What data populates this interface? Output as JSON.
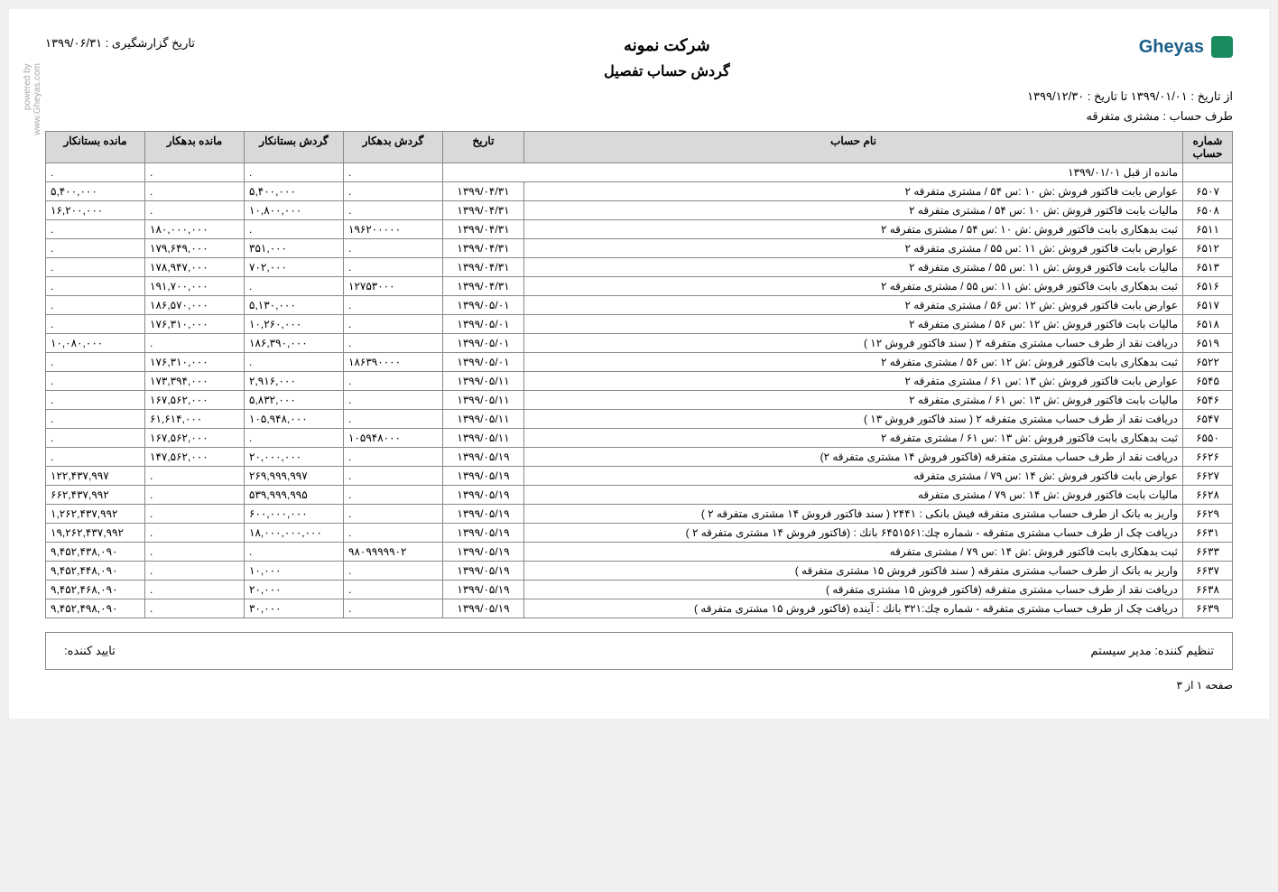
{
  "header": {
    "logo_text": "Gheyas",
    "company": "شرکت نمونه",
    "report_title": "گردش حساب تفصیل",
    "report_date_label": "تاریخ گزارشگیری : ۱۳۹۹/۰۶/۳۱",
    "date_range": "از تاریخ : ۱۳۹۹/۰۱/۰۱  تا تاریخ : ۱۳۹۹/۱۲/۳۰",
    "account_party": "طرف حساب : مشتری متفرقه",
    "powered_by": "powered by",
    "powered_url": "www.Gheyas.com"
  },
  "columns": {
    "acc_no": "شماره حساب",
    "acc_name": "نام حساب",
    "date": "تاریخ",
    "debit_turn": "گردش بدهکار",
    "credit_turn": "گردش بستانکار",
    "debit_bal": "مانده بدهکار",
    "credit_bal": "مانده بستانکار"
  },
  "opening": {
    "label": "مانده از قبل ۱۳۹۹/۰۱/۰۱",
    "debit_turn": ".",
    "credit_turn": ".",
    "debit_bal": ".",
    "credit_bal": "."
  },
  "rows": [
    {
      "no": "۶۵۰۷",
      "name": "عوارض  بابت فاکتور فروش :ش ۱۰ :س ۵۴ / مشتری متفرقه ۲",
      "date": "۱۳۹۹/۰۴/۳۱",
      "dt": ".",
      "ct": "۵,۴۰۰,۰۰۰",
      "db": ".",
      "cb": "۵,۴۰۰,۰۰۰"
    },
    {
      "no": "۶۵۰۸",
      "name": "مالیات  بابت فاکتور فروش :ش ۱۰ :س ۵۴ / مشتری متفرقه ۲",
      "date": "۱۳۹۹/۰۴/۳۱",
      "dt": ".",
      "ct": "۱۰,۸۰۰,۰۰۰",
      "db": ".",
      "cb": "۱۶,۲۰۰,۰۰۰"
    },
    {
      "no": "۶۵۱۱",
      "name": "ثبت بدهکاری  بابت فاکتور فروش :ش ۱۰ :س ۵۴ / مشتری متفرقه ۲",
      "date": "۱۳۹۹/۰۴/۳۱",
      "dt": "۱۹۶۲۰۰۰۰۰",
      "ct": ".",
      "db": "۱۸۰,۰۰۰,۰۰۰",
      "cb": "."
    },
    {
      "no": "۶۵۱۲",
      "name": "عوارض  بابت فاکتور فروش :ش ۱۱ :س ۵۵ / مشتری متفرقه ۲",
      "date": "۱۳۹۹/۰۴/۳۱",
      "dt": ".",
      "ct": "۳۵۱,۰۰۰",
      "db": "۱۷۹,۶۴۹,۰۰۰",
      "cb": "."
    },
    {
      "no": "۶۵۱۳",
      "name": "مالیات  بابت فاکتور فروش :ش ۱۱ :س ۵۵ / مشتری متفرقه ۲",
      "date": "۱۳۹۹/۰۴/۳۱",
      "dt": ".",
      "ct": "۷۰۲,۰۰۰",
      "db": "۱۷۸,۹۴۷,۰۰۰",
      "cb": "."
    },
    {
      "no": "۶۵۱۶",
      "name": "ثبت بدهکاری  بابت فاکتور فروش :ش ۱۱ :س ۵۵ / مشتری متفرقه ۲",
      "date": "۱۳۹۹/۰۴/۳۱",
      "dt": "۱۲۷۵۳۰۰۰",
      "ct": ".",
      "db": "۱۹۱,۷۰۰,۰۰۰",
      "cb": "."
    },
    {
      "no": "۶۵۱۷",
      "name": "عوارض  بابت فاکتور فروش :ش ۱۲ :س ۵۶ / مشتری متفرقه ۲",
      "date": "۱۳۹۹/۰۵/۰۱",
      "dt": ".",
      "ct": "۵,۱۳۰,۰۰۰",
      "db": "۱۸۶,۵۷۰,۰۰۰",
      "cb": "."
    },
    {
      "no": "۶۵۱۸",
      "name": "مالیات  بابت فاکتور فروش :ش ۱۲ :س ۵۶ / مشتری متفرقه ۲",
      "date": "۱۳۹۹/۰۵/۰۱",
      "dt": ".",
      "ct": "۱۰,۲۶۰,۰۰۰",
      "db": "۱۷۶,۳۱۰,۰۰۰",
      "cb": "."
    },
    {
      "no": "۶۵۱۹",
      "name": "دریافت نقد از طرف حساب مشتری متفرقه ۲ ( سند فاکتور فروش ۱۲ )",
      "date": "۱۳۹۹/۰۵/۰۱",
      "dt": ".",
      "ct": "۱۸۶,۳۹۰,۰۰۰",
      "db": ".",
      "cb": "۱۰,۰۸۰,۰۰۰"
    },
    {
      "no": "۶۵۲۲",
      "name": "ثبت بدهکاری  بابت فاکتور فروش :ش ۱۲ :س ۵۶ / مشتری متفرقه ۲",
      "date": "۱۳۹۹/۰۵/۰۱",
      "dt": "۱۸۶۳۹۰۰۰۰",
      "ct": ".",
      "db": "۱۷۶,۳۱۰,۰۰۰",
      "cb": "."
    },
    {
      "no": "۶۵۴۵",
      "name": "عوارض  بابت فاکتور فروش :ش ۱۳ :س ۶۱ / مشتری متفرقه ۲",
      "date": "۱۳۹۹/۰۵/۱۱",
      "dt": ".",
      "ct": "۲,۹۱۶,۰۰۰",
      "db": "۱۷۳,۳۹۴,۰۰۰",
      "cb": "."
    },
    {
      "no": "۶۵۴۶",
      "name": "مالیات  بابت فاکتور فروش :ش ۱۳ :س ۶۱ / مشتری متفرقه ۲",
      "date": "۱۳۹۹/۰۵/۱۱",
      "dt": ".",
      "ct": "۵,۸۳۲,۰۰۰",
      "db": "۱۶۷,۵۶۲,۰۰۰",
      "cb": "."
    },
    {
      "no": "۶۵۴۷",
      "name": "دریافت نقد از طرف حساب مشتری متفرقه ۲ ( سند فاکتور فروش ۱۳ )",
      "date": "۱۳۹۹/۰۵/۱۱",
      "dt": ".",
      "ct": "۱۰۵,۹۴۸,۰۰۰",
      "db": "۶۱,۶۱۴,۰۰۰",
      "cb": "."
    },
    {
      "no": "۶۵۵۰",
      "name": "ثبت بدهکاری  بابت فاکتور فروش :ش ۱۳ :س ۶۱ / مشتری متفرقه ۲",
      "date": "۱۳۹۹/۰۵/۱۱",
      "dt": "۱۰۵۹۴۸۰۰۰",
      "ct": ".",
      "db": "۱۶۷,۵۶۲,۰۰۰",
      "cb": "."
    },
    {
      "no": "۶۶۲۶",
      "name": "دریافت نقد از طرف حساب مشتری متفرقه (فاکتور فروش ۱۴ مشتری متفرقه ۲)",
      "date": "۱۳۹۹/۰۵/۱۹",
      "dt": ".",
      "ct": "۲۰,۰۰۰,۰۰۰",
      "db": "۱۴۷,۵۶۲,۰۰۰",
      "cb": "."
    },
    {
      "no": "۶۶۲۷",
      "name": "عوارض  بابت فاکتور فروش :ش ۱۴ :س ۷۹ / مشتری متفرقه",
      "date": "۱۳۹۹/۰۵/۱۹",
      "dt": ".",
      "ct": "۲۶۹,۹۹۹,۹۹۷",
      "db": ".",
      "cb": "۱۲۲,۴۳۷,۹۹۷"
    },
    {
      "no": "۶۶۲۸",
      "name": "مالیات  بابت فاکتور فروش :ش ۱۴ :س ۷۹ / مشتری متفرقه",
      "date": "۱۳۹۹/۰۵/۱۹",
      "dt": ".",
      "ct": "۵۳۹,۹۹۹,۹۹۵",
      "db": ".",
      "cb": "۶۶۲,۴۳۷,۹۹۲"
    },
    {
      "no": "۶۶۲۹",
      "name": "واریز به بانک از طرف حساب مشتری متفرقه فیش بانکی : ۲۴۴۱ ( سند فاکتور فروش ۱۴ مشتری متفرقه ۲ )",
      "date": "۱۳۹۹/۰۵/۱۹",
      "dt": ".",
      "ct": "۶۰۰,۰۰۰,۰۰۰",
      "db": ".",
      "cb": "۱,۲۶۲,۴۳۷,۹۹۲"
    },
    {
      "no": "۶۶۳۱",
      "name": "دریافت چک از طرف حساب مشتری متفرقه - شماره چك:۶۴۵۱۵۶۱  بانك :  (فاکتور فروش ۱۴ مشتری متفرقه ۲ )",
      "date": "۱۳۹۹/۰۵/۱۹",
      "dt": ".",
      "ct": "۱۸,۰۰۰,۰۰۰,۰۰۰",
      "db": ".",
      "cb": "۱۹,۲۶۲,۴۳۷,۹۹۲"
    },
    {
      "no": "۶۶۳۳",
      "name": "ثبت بدهکاری  بابت فاکتور فروش :ش ۱۴ :س ۷۹ / مشتری متفرقه",
      "date": "۱۳۹۹/۰۵/۱۹",
      "dt": "۹۸۰۹۹۹۹۹۰۲",
      "ct": ".",
      "db": ".",
      "cb": "۹,۴۵۲,۴۳۸,۰۹۰"
    },
    {
      "no": "۶۶۳۷",
      "name": "واریز به بانک از طرف حساب مشتری متفرقه ( سند فاکتور فروش ۱۵ مشتری متفرقه )",
      "date": "۱۳۹۹/۰۵/۱۹",
      "dt": ".",
      "ct": "۱۰,۰۰۰",
      "db": ".",
      "cb": "۹,۴۵۲,۴۴۸,۰۹۰"
    },
    {
      "no": "۶۶۳۸",
      "name": "دریافت نقد از طرف حساب مشتری متفرقه (فاکتور فروش ۱۵ مشتری متفرقه )",
      "date": "۱۳۹۹/۰۵/۱۹",
      "dt": ".",
      "ct": "۲۰,۰۰۰",
      "db": ".",
      "cb": "۹,۴۵۲,۴۶۸,۰۹۰"
    },
    {
      "no": "۶۶۳۹",
      "name": "دریافت چک از طرف حساب مشتری متفرقه - شماره چك:۳۲۱  بانك : آینده (فاکتور فروش ۱۵ مشتری متفرقه )",
      "date": "۱۳۹۹/۰۵/۱۹",
      "dt": ".",
      "ct": "۳۰,۰۰۰",
      "db": ".",
      "cb": "۹,۴۵۲,۴۹۸,۰۹۰"
    }
  ],
  "footer": {
    "preparer_label": "تنظیم کننده:",
    "preparer_value": "مدیر سیستم",
    "approver_label": "تایید کننده:"
  },
  "page_footer": "صفحه ۱ از ۳"
}
